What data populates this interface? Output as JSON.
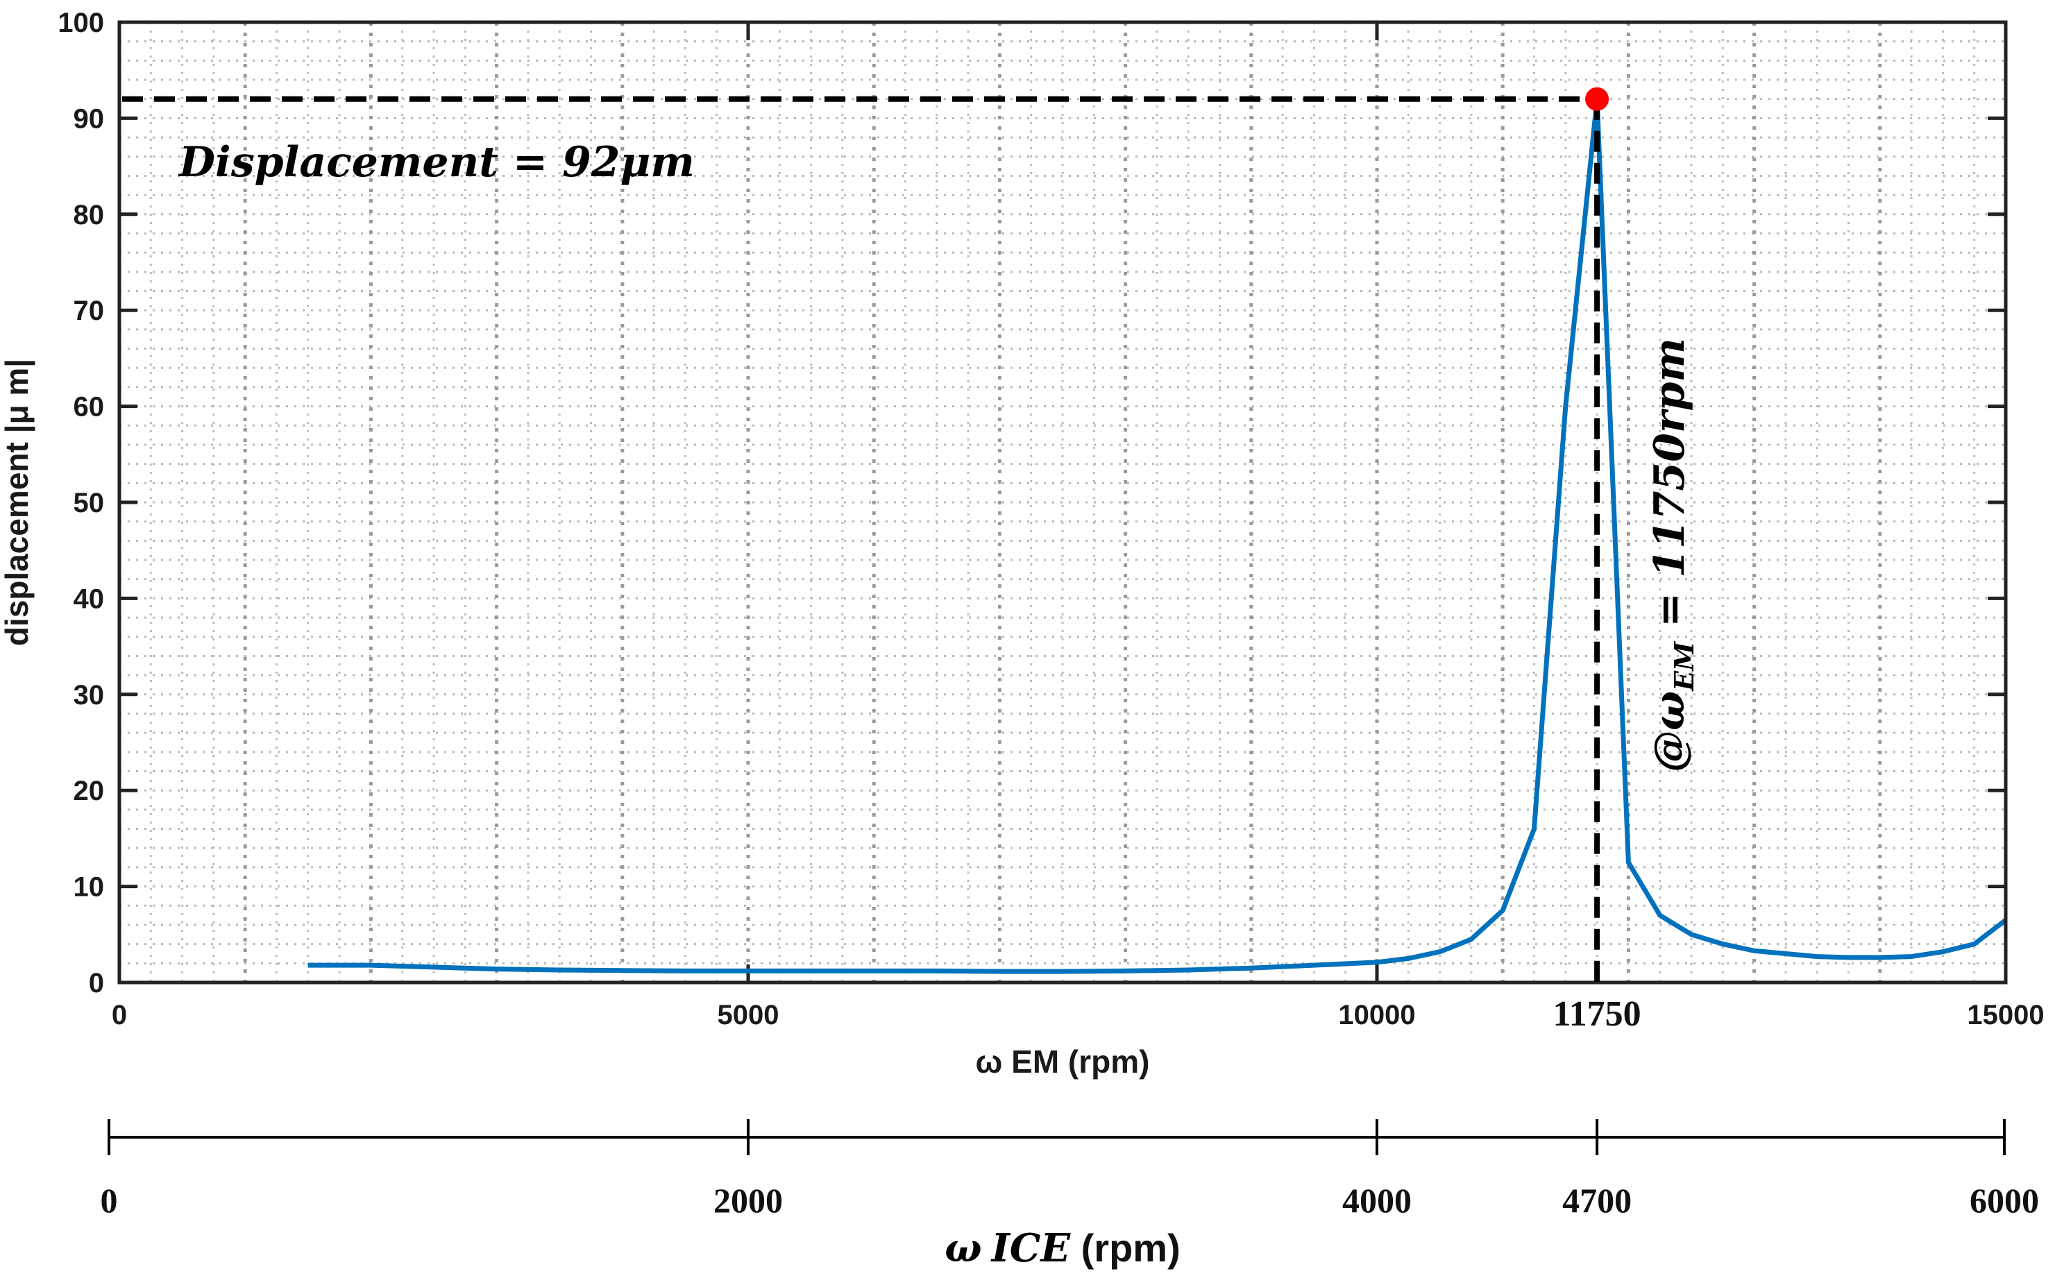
{
  "chart_data": {
    "type": "line",
    "xlabel": "ω EM (rpm)",
    "ylabel": "displacement |μ m|",
    "xlim": [
      0,
      15000
    ],
    "ylim": [
      0,
      100
    ],
    "x_ticks": [
      0,
      5000,
      10000,
      15000
    ],
    "x_tick_labels": [
      "0",
      "5000",
      "10000",
      "15000"
    ],
    "y_ticks": [
      0,
      10,
      20,
      30,
      40,
      50,
      60,
      70,
      80,
      90,
      100
    ],
    "y_tick_labels": [
      "0",
      "10",
      "20",
      "30",
      "40",
      "50",
      "60",
      "70",
      "80",
      "90",
      "100"
    ],
    "x_minor_step": 250,
    "x_major_grid_step": 1000,
    "y_minor_step": 2,
    "grid": "dotted",
    "series": [
      {
        "name": "displacement",
        "color": "#0072BD",
        "x": [
          1500,
          2000,
          2500,
          3000,
          3500,
          4000,
          4500,
          5000,
          5500,
          6000,
          6500,
          7000,
          7500,
          8000,
          8500,
          9000,
          9500,
          10000,
          10250,
          10500,
          10750,
          11000,
          11250,
          11500,
          11750,
          12000,
          12250,
          12500,
          12750,
          13000,
          13250,
          13500,
          13750,
          14000,
          14250,
          14500,
          14750,
          15000
        ],
        "values": [
          1.8,
          1.8,
          1.6,
          1.4,
          1.3,
          1.25,
          1.2,
          1.2,
          1.2,
          1.2,
          1.2,
          1.15,
          1.15,
          1.2,
          1.3,
          1.5,
          1.8,
          2.1,
          2.5,
          3.2,
          4.5,
          7.5,
          16,
          60,
          92,
          12.5,
          7,
          5,
          4,
          3.3,
          3,
          2.7,
          2.6,
          2.6,
          2.7,
          3.2,
          4,
          6.5
        ]
      }
    ],
    "peak": {
      "x": 11750,
      "y": 92,
      "color": "#ff0000"
    },
    "secondary_axis": {
      "label": "ω ICE (rpm)",
      "label_symbol": "ω",
      "label_italic": "ICE",
      "label_units": " (rpm)",
      "ticks": [
        0,
        2000,
        4000,
        4700,
        6000
      ],
      "tick_labels": [
        "0",
        "2000",
        "4000",
        "4700",
        "6000"
      ],
      "em_equivalent": [
        0,
        5000,
        10000,
        11750,
        15000
      ]
    },
    "annotations": {
      "displacement_text": "Displacement  = 92μm",
      "speed_prefix": "@ω",
      "speed_subscript": "EM",
      "speed_suffix": " = 11750rpm",
      "peak_tick_label": "11750"
    }
  }
}
